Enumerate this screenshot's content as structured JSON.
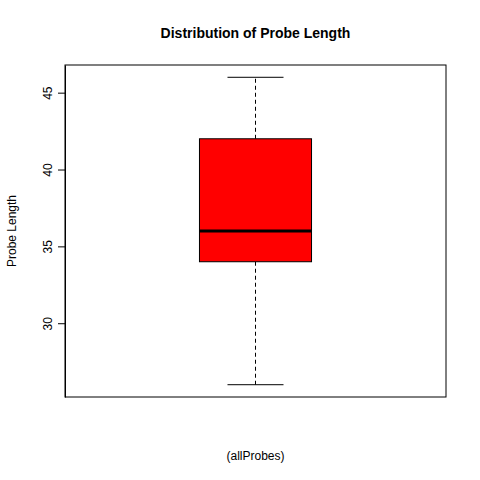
{
  "chart_data": {
    "type": "box",
    "title": "Distribution of Probe Length",
    "y_label": "Probe Length",
    "x_label": "(allProbes)",
    "boxes": [
      {
        "min": 26,
        "q1": 34,
        "median": 36,
        "q3": 42,
        "max": 46
      }
    ],
    "color": "#ff0000",
    "ylim": [
      25.2,
      46.8
    ],
    "yticks": [
      30,
      35,
      40,
      45
    ],
    "grid": false,
    "tick_labels": "y"
  }
}
